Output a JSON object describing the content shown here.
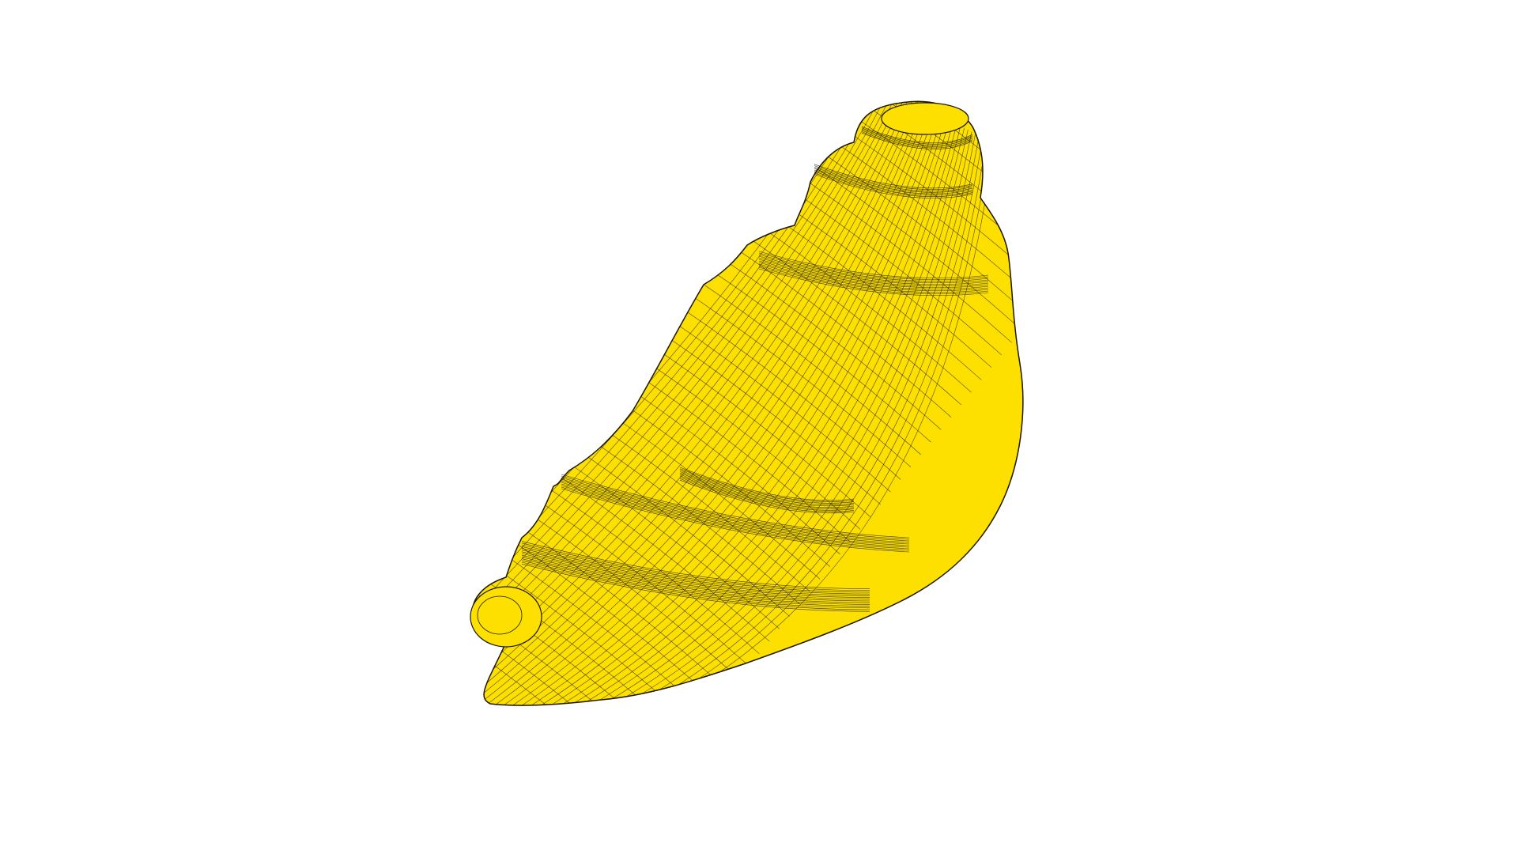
{
  "scene": {
    "background_color": "#ffffff",
    "model": {
      "object": "croissant-wireframe-mesh",
      "fill_color": "#fde000",
      "wire_color": "#1a1600",
      "shade_color": "#d9bf00"
    }
  }
}
